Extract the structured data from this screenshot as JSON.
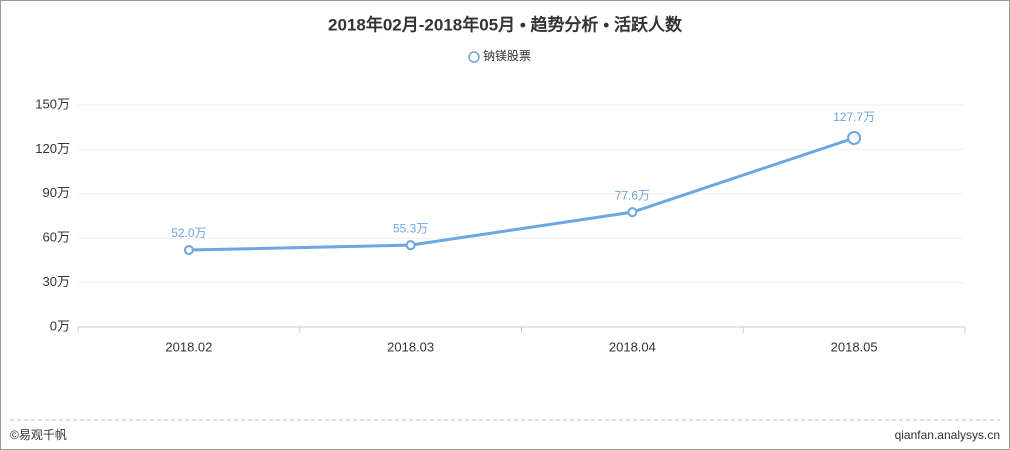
{
  "chart_data": {
    "type": "line",
    "title": "2018年02月-2018年05月 • 趋势分析 • 活跃人数",
    "categories": [
      "2018.02",
      "2018.03",
      "2018.04",
      "2018.05"
    ],
    "series": [
      {
        "name": "钠镁股票",
        "color": "#6ca6e3",
        "values": [
          52.0,
          55.3,
          77.6,
          127.7
        ],
        "value_labels": [
          "52.0万",
          "55.3万",
          "77.6万",
          "127.7万"
        ]
      }
    ],
    "ylim": [
      0,
      150
    ],
    "yticks": [
      {
        "value": 0,
        "label": "0万"
      },
      {
        "value": 30,
        "label": "30万"
      },
      {
        "value": 60,
        "label": "60万"
      },
      {
        "value": 90,
        "label": "90万"
      },
      {
        "value": 120,
        "label": "120万"
      },
      {
        "value": 150,
        "label": "150万"
      }
    ],
    "grid": true,
    "legend": "top"
  },
  "footer": {
    "left": "©易观千帆",
    "right": "qianfan.analysys.cn"
  }
}
